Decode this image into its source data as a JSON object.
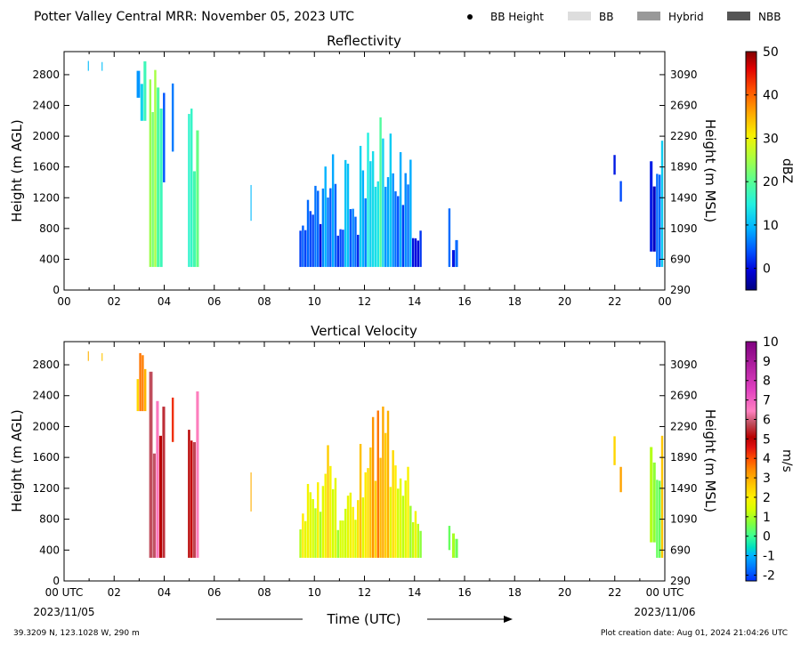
{
  "header": {
    "title": "Potter Valley Central MRR:  November 05, 2023 UTC",
    "legend": [
      {
        "label": "BB Height",
        "marker": "dot",
        "color": "#000000"
      },
      {
        "label": "BB",
        "marker": "box",
        "color": "#dddddd"
      },
      {
        "label": "Hybrid",
        "marker": "box",
        "color": "#999999"
      },
      {
        "label": "NBB",
        "marker": "box",
        "color": "#555555"
      }
    ]
  },
  "footer": {
    "location": "39.3209 N, 123.1028 W, 290 m",
    "created": "Plot creation date: Aug 01, 2024 21:04:26 UTC",
    "xlabel": "Time (UTC)",
    "start_date": "2023/11/05",
    "end_date": "2023/11/06"
  },
  "chart_data": [
    {
      "type": "heatmap",
      "title": "Reflectivity",
      "ylabel_left": "Height (m AGL)",
      "ylabel_right": "Height (m MSL)",
      "colorbar_label": "dBZ",
      "xlim": [
        0,
        24
      ],
      "ylim": [
        0,
        3100
      ],
      "x_ticks": [
        "00",
        "02",
        "04",
        "06",
        "08",
        "10",
        "12",
        "14",
        "16",
        "18",
        "20",
        "22",
        "00"
      ],
      "y_ticks_left": [
        0,
        400,
        800,
        1200,
        1600,
        2000,
        2400,
        2800
      ],
      "y_ticks_right": [
        290,
        690,
        1090,
        1490,
        1890,
        2290,
        2690,
        3090
      ],
      "colorbar": {
        "min": -5,
        "max": 50,
        "ticks": [
          0,
          10,
          20,
          30,
          40,
          50
        ]
      },
      "echo_columns": [
        {
          "t0": 0.95,
          "t1": 1.0,
          "h0": 2850,
          "h1": 3000,
          "v": 8
        },
        {
          "t0": 1.5,
          "t1": 1.55,
          "h0": 2850,
          "h1": 3000,
          "v": 10
        },
        {
          "t0": 2.9,
          "t1": 3.05,
          "h0": 2500,
          "h1": 3000,
          "v": 8
        },
        {
          "t0": 3.05,
          "t1": 3.3,
          "h0": 2200,
          "h1": 3000,
          "v": 14
        },
        {
          "t0": 3.4,
          "t1": 3.7,
          "h0": 300,
          "h1": 3000,
          "v": 22
        },
        {
          "t0": 3.7,
          "t1": 3.95,
          "h0": 300,
          "h1": 3000,
          "v": 17
        },
        {
          "t0": 3.95,
          "t1": 4.05,
          "h0": 1400,
          "h1": 3000,
          "v": 4
        },
        {
          "t0": 4.3,
          "t1": 4.4,
          "h0": 1800,
          "h1": 3000,
          "v": 6
        },
        {
          "t0": 4.95,
          "t1": 5.15,
          "h0": 300,
          "h1": 3000,
          "v": 16
        },
        {
          "t0": 5.15,
          "t1": 5.4,
          "h0": 300,
          "h1": 3000,
          "v": 22
        },
        {
          "t0": 7.45,
          "t1": 7.5,
          "h0": 900,
          "h1": 1500,
          "v": 9
        },
        {
          "t0": 9.4,
          "t1": 9.7,
          "h0": 300,
          "h1": 900,
          "v": 2
        },
        {
          "t0": 9.7,
          "t1": 10.0,
          "h0": 300,
          "h1": 1600,
          "v": 6
        },
        {
          "t0": 10.0,
          "t1": 10.3,
          "h0": 300,
          "h1": 1450,
          "v": 3
        },
        {
          "t0": 10.3,
          "t1": 10.6,
          "h0": 300,
          "h1": 1900,
          "v": 8
        },
        {
          "t0": 10.6,
          "t1": 10.9,
          "h0": 300,
          "h1": 1800,
          "v": 5
        },
        {
          "t0": 10.9,
          "t1": 11.2,
          "h0": 300,
          "h1": 1000,
          "v": 4
        },
        {
          "t0": 11.2,
          "t1": 11.5,
          "h0": 300,
          "h1": 1700,
          "v": 7
        },
        {
          "t0": 11.5,
          "t1": 11.8,
          "h0": 300,
          "h1": 1200,
          "v": 5
        },
        {
          "t0": 11.8,
          "t1": 12.1,
          "h0": 300,
          "h1": 2000,
          "v": 9
        },
        {
          "t0": 12.1,
          "t1": 12.4,
          "h0": 300,
          "h1": 2200,
          "v": 12
        },
        {
          "t0": 12.4,
          "t1": 12.7,
          "h0": 300,
          "h1": 2500,
          "v": 17
        },
        {
          "t0": 12.7,
          "t1": 13.0,
          "h0": 300,
          "h1": 2400,
          "v": 11
        },
        {
          "t0": 13.0,
          "t1": 13.3,
          "h0": 300,
          "h1": 2100,
          "v": 8
        },
        {
          "t0": 13.3,
          "t1": 13.6,
          "h0": 300,
          "h1": 1900,
          "v": 6
        },
        {
          "t0": 13.6,
          "t1": 13.9,
          "h0": 300,
          "h1": 1700,
          "v": 5
        },
        {
          "t0": 13.9,
          "t1": 14.3,
          "h0": 300,
          "h1": 1000,
          "v": 3
        },
        {
          "t0": 15.35,
          "t1": 15.45,
          "h0": 300,
          "h1": 1100,
          "v": 2
        },
        {
          "t0": 15.5,
          "t1": 15.75,
          "h0": 300,
          "h1": 700,
          "v": 3
        },
        {
          "t0": 21.95,
          "t1": 22.05,
          "h0": 1500,
          "h1": 1900,
          "v": 2
        },
        {
          "t0": 22.2,
          "t1": 22.3,
          "h0": 1150,
          "h1": 1500,
          "v": 3
        },
        {
          "t0": 23.4,
          "t1": 23.65,
          "h0": 500,
          "h1": 2300,
          "v": 2
        },
        {
          "t0": 23.65,
          "t1": 23.85,
          "h0": 300,
          "h1": 2100,
          "v": 6
        },
        {
          "t0": 23.85,
          "t1": 23.95,
          "h0": 300,
          "h1": 2450,
          "v": 11
        }
      ]
    },
    {
      "type": "heatmap",
      "title": "Vertical Velocity",
      "ylabel_left": "Height (m AGL)",
      "ylabel_right": "Height (m MSL)",
      "colorbar_label": "m/s",
      "xlim": [
        0,
        24
      ],
      "ylim": [
        0,
        3100
      ],
      "x_ticks": [
        "00 UTC",
        "02",
        "04",
        "06",
        "08",
        "10",
        "12",
        "14",
        "16",
        "18",
        "20",
        "22",
        "00 UTC"
      ],
      "y_ticks_left": [
        0,
        400,
        800,
        1200,
        1600,
        2000,
        2400,
        2800
      ],
      "y_ticks_right": [
        290,
        690,
        1090,
        1490,
        1890,
        2290,
        2690,
        3090
      ],
      "colorbar": {
        "min": -2.3,
        "max": 10,
        "ticks": [
          -2,
          -1,
          0,
          1,
          2,
          3,
          4,
          5,
          6,
          7,
          8,
          9,
          10
        ]
      },
      "echo_columns": [
        {
          "t0": 0.95,
          "t1": 1.0,
          "h0": 2850,
          "h1": 3000,
          "v": 2.6
        },
        {
          "t0": 1.5,
          "t1": 1.55,
          "h0": 2850,
          "h1": 3000,
          "v": 2.8
        },
        {
          "t0": 2.9,
          "t1": 3.3,
          "h0": 2200,
          "h1": 3000,
          "v": 3.0
        },
        {
          "t0": 3.4,
          "t1": 3.55,
          "h0": 300,
          "h1": 3000,
          "v": 5.3
        },
        {
          "t0": 3.55,
          "t1": 3.8,
          "h0": 300,
          "h1": 3000,
          "v": 6.5
        },
        {
          "t0": 3.8,
          "t1": 4.05,
          "h0": 300,
          "h1": 3000,
          "v": 5.5
        },
        {
          "t0": 4.3,
          "t1": 4.4,
          "h0": 1800,
          "h1": 3000,
          "v": 5.0
        },
        {
          "t0": 4.95,
          "t1": 5.15,
          "h0": 300,
          "h1": 3000,
          "v": 5.4
        },
        {
          "t0": 5.15,
          "t1": 5.4,
          "h0": 300,
          "h1": 3000,
          "v": 6.2
        },
        {
          "t0": 7.45,
          "t1": 7.5,
          "h0": 900,
          "h1": 1500,
          "v": 2.6
        },
        {
          "t0": 9.4,
          "t1": 9.7,
          "h0": 300,
          "h1": 900,
          "v": 1.4
        },
        {
          "t0": 9.7,
          "t1": 10.0,
          "h0": 300,
          "h1": 1600,
          "v": 1.8
        },
        {
          "t0": 10.0,
          "t1": 10.3,
          "h0": 300,
          "h1": 1450,
          "v": 1.6
        },
        {
          "t0": 10.3,
          "t1": 10.6,
          "h0": 300,
          "h1": 1900,
          "v": 2.0
        },
        {
          "t0": 10.6,
          "t1": 10.9,
          "h0": 300,
          "h1": 1800,
          "v": 1.7
        },
        {
          "t0": 10.9,
          "t1": 11.2,
          "h0": 300,
          "h1": 1000,
          "v": 1.5
        },
        {
          "t0": 11.2,
          "t1": 11.5,
          "h0": 300,
          "h1": 1700,
          "v": 2.1
        },
        {
          "t0": 11.5,
          "t1": 11.8,
          "h0": 300,
          "h1": 1200,
          "v": 1.9
        },
        {
          "t0": 11.8,
          "t1": 12.1,
          "h0": 300,
          "h1": 2000,
          "v": 2.3
        },
        {
          "t0": 12.1,
          "t1": 12.4,
          "h0": 300,
          "h1": 2200,
          "v": 2.6
        },
        {
          "t0": 12.4,
          "t1": 12.7,
          "h0": 300,
          "h1": 2500,
          "v": 3.2
        },
        {
          "t0": 12.7,
          "t1": 13.0,
          "h0": 300,
          "h1": 2400,
          "v": 2.4
        },
        {
          "t0": 13.0,
          "t1": 13.3,
          "h0": 300,
          "h1": 2100,
          "v": 2.2
        },
        {
          "t0": 13.3,
          "t1": 13.6,
          "h0": 300,
          "h1": 1900,
          "v": 1.8
        },
        {
          "t0": 13.6,
          "t1": 13.9,
          "h0": 300,
          "h1": 1700,
          "v": 1.6
        },
        {
          "t0": 13.9,
          "t1": 14.3,
          "h0": 300,
          "h1": 1000,
          "v": 1.4
        },
        {
          "t0": 15.35,
          "t1": 15.45,
          "h0": 400,
          "h1": 1000,
          "v": 1.0
        },
        {
          "t0": 15.5,
          "t1": 15.75,
          "h0": 300,
          "h1": 700,
          "v": 0.8
        },
        {
          "t0": 21.95,
          "t1": 22.05,
          "h0": 1500,
          "h1": 1900,
          "v": 1.8
        },
        {
          "t0": 22.2,
          "t1": 22.3,
          "h0": 1150,
          "h1": 1500,
          "v": 2.5
        },
        {
          "t0": 23.4,
          "t1": 23.65,
          "h0": 500,
          "h1": 2300,
          "v": 1.2
        },
        {
          "t0": 23.65,
          "t1": 23.85,
          "h0": 300,
          "h1": 2100,
          "v": 0.9
        },
        {
          "t0": 23.85,
          "t1": 23.95,
          "h0": 300,
          "h1": 2450,
          "v": 2.6
        }
      ]
    }
  ]
}
